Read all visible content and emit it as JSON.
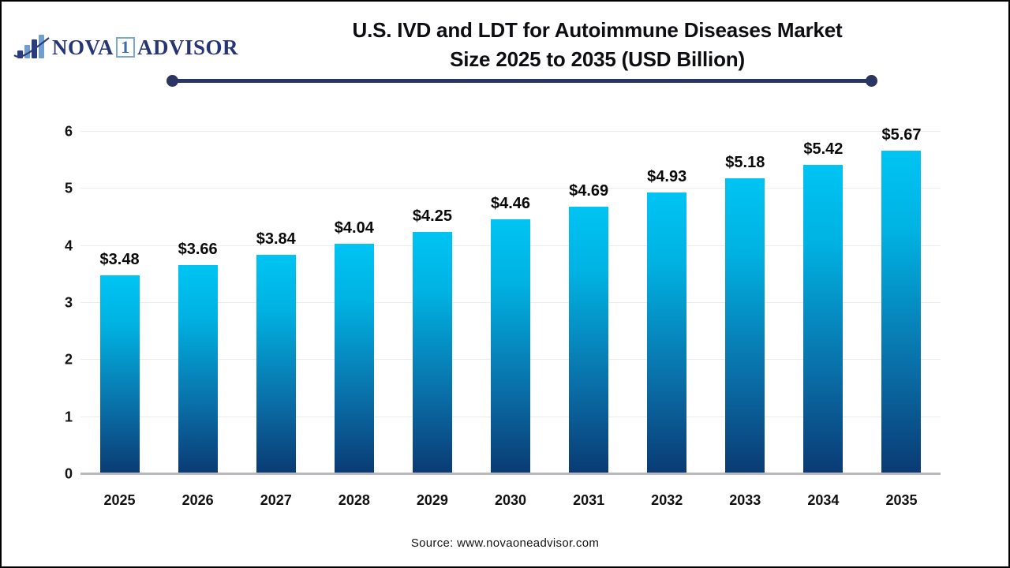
{
  "logo": {
    "name_part1": "NOVA",
    "name_boxed": "1",
    "name_part2": "ADVISOR",
    "icon": "bar-chart-swoosh-icon"
  },
  "title": {
    "line1": "U.S. IVD and LDT for Autoimmune Diseases Market",
    "line2": "Size 2025 to 2035 (USD Billion)"
  },
  "source": "Source: www.novaoneadvisor.com",
  "colors": {
    "bar_gradient_top": "#00c4f3",
    "bar_gradient_bottom": "#0a3a73",
    "title_rule_navy": "#2a3563",
    "logo_navy": "#263575",
    "logo_light_blue": "#7aaad4",
    "gridline": "#ececec",
    "axis_baseline": "#b9b9bd",
    "text": "#0d0d12"
  },
  "chart_data": {
    "type": "bar",
    "title": "U.S. IVD and LDT for Autoimmune Diseases Market Size 2025 to 2035 (USD Billion)",
    "categories": [
      "2025",
      "2026",
      "2027",
      "2028",
      "2029",
      "2030",
      "2031",
      "2032",
      "2033",
      "2034",
      "2035"
    ],
    "values": [
      3.48,
      3.66,
      3.84,
      4.04,
      4.25,
      4.46,
      4.69,
      4.93,
      5.18,
      5.42,
      5.67
    ],
    "data_labels": [
      "$3.48",
      "$3.66",
      "$3.84",
      "$4.04",
      "$4.25",
      "$4.46",
      "$4.69",
      "$4.93",
      "$5.18",
      "$5.42",
      "$5.67"
    ],
    "xlabel": "",
    "ylabel": "",
    "ylim": [
      0,
      6
    ],
    "yticks": [
      0,
      1,
      2,
      3,
      4,
      5,
      6
    ],
    "grid": true,
    "legend": false,
    "currency_unit": "USD Billion"
  }
}
